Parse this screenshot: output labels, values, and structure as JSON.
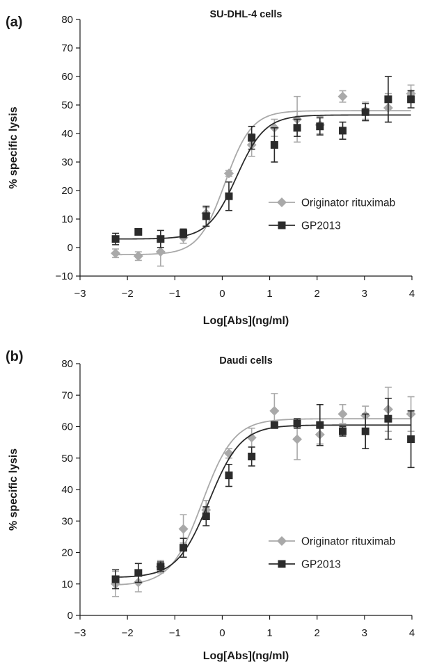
{
  "chart_data": [
    {
      "type": "scatter",
      "panel_label": "(a)",
      "title": "SU-DHL-4 cells",
      "xlabel": "Log[Abs](ng/ml)",
      "ylabel": "% specific lysis",
      "xlim": [
        -3,
        4
      ],
      "ylim": [
        -10,
        80
      ],
      "xticks": [
        -3,
        -2,
        -1,
        0,
        1,
        2,
        3,
        4
      ],
      "yticks": [
        -10,
        0,
        10,
        20,
        30,
        40,
        50,
        60,
        70,
        80
      ],
      "xtick_labels": [
        "−3",
        "−2",
        "−1",
        "0",
        "1",
        "2",
        "3",
        "4"
      ],
      "ytick_labels": [
        "−10",
        "0",
        "10",
        "20",
        "30",
        "40",
        "50",
        "60",
        "70",
        "80"
      ],
      "grid": false,
      "legend_position": "center-right",
      "series": [
        {
          "name": "Originator rituximab",
          "color": "#a9a9a9",
          "marker": "diamond",
          "x": [
            -2.25,
            -1.77,
            -1.3,
            -0.82,
            -0.34,
            0.14,
            0.62,
            1.1,
            1.58,
            2.06,
            2.54,
            3.02,
            3.5,
            3.98
          ],
          "y": [
            -2,
            -3,
            -1.5,
            3.5,
            12,
            26,
            36,
            42,
            45,
            43,
            53,
            48,
            49,
            54
          ],
          "err": [
            1.5,
            1.5,
            5,
            2,
            2,
            1,
            4,
            3,
            8,
            3,
            2,
            3,
            5,
            3
          ],
          "fit": {
            "bottom": -2.5,
            "top": 48,
            "ec50": 0.06,
            "hill": 1.55
          }
        },
        {
          "name": "GP2013",
          "color": "#2b2b2b",
          "marker": "square",
          "x": [
            -2.25,
            -1.77,
            -1.3,
            -0.82,
            -0.34,
            0.14,
            0.62,
            1.1,
            1.58,
            2.06,
            2.54,
            3.02,
            3.5,
            3.98
          ],
          "y": [
            3,
            5.5,
            3,
            5,
            11,
            18,
            38.5,
            36,
            42,
            42.5,
            41,
            47.5,
            52,
            52
          ],
          "err": [
            2,
            0,
            3,
            1.5,
            3.5,
            5,
            4,
            6,
            3,
            3,
            3,
            3,
            8,
            3
          ],
          "fit": {
            "bottom": 3,
            "top": 46.5,
            "ec50": 0.3,
            "hill": 1.45
          }
        }
      ]
    },
    {
      "type": "scatter",
      "panel_label": "(b)",
      "title": "Daudi cells",
      "xlabel": "Log[Abs](ng/ml)",
      "ylabel": "% specific lysis",
      "xlim": [
        -3,
        4
      ],
      "ylim": [
        0,
        80
      ],
      "xticks": [
        -3,
        -2,
        -1,
        0,
        1,
        2,
        3,
        4
      ],
      "yticks": [
        0,
        10,
        20,
        30,
        40,
        50,
        60,
        70,
        80
      ],
      "xtick_labels": [
        "−3",
        "−2",
        "−1",
        "0",
        "1",
        "2",
        "3",
        "4"
      ],
      "ytick_labels": [
        "0",
        "10",
        "20",
        "30",
        "40",
        "50",
        "60",
        "70",
        "80"
      ],
      "grid": false,
      "legend_position": "center-right",
      "series": [
        {
          "name": "Originator rituximab",
          "color": "#a9a9a9",
          "marker": "diamond",
          "x": [
            -2.25,
            -1.77,
            -1.3,
            -0.82,
            -0.34,
            0.14,
            0.62,
            1.1,
            1.58,
            2.06,
            2.54,
            3.02,
            3.5,
            3.98
          ],
          "y": [
            10,
            10.5,
            15.5,
            27.5,
            33.5,
            51.5,
            56.5,
            65,
            56,
            57.5,
            64,
            63.5,
            65.5,
            64
          ],
          "err": [
            4,
            3,
            2,
            4.5,
            3,
            1.5,
            3,
            5.5,
            6.5,
            3,
            3,
            3,
            7,
            5.5
          ],
          "fit": {
            "bottom": 9.5,
            "top": 62.5,
            "ec50": -0.42,
            "hill": 1.3
          }
        },
        {
          "name": "GP2013",
          "color": "#2b2b2b",
          "marker": "square",
          "x": [
            -2.25,
            -1.77,
            -1.3,
            -0.82,
            -0.34,
            0.14,
            0.62,
            1.1,
            1.58,
            2.06,
            2.54,
            3.02,
            3.5,
            3.98
          ],
          "y": [
            11.5,
            13.5,
            15.5,
            21.5,
            31.5,
            44.5,
            50.5,
            60.5,
            61,
            60.5,
            58.5,
            58.5,
            62.5,
            56
          ],
          "err": [
            3,
            3,
            1.5,
            3,
            3,
            3.5,
            3,
            1,
            1.5,
            6.5,
            1.5,
            5.5,
            6.5,
            9
          ],
          "fit": {
            "bottom": 12,
            "top": 60.5,
            "ec50": -0.28,
            "hill": 1.3
          }
        }
      ]
    }
  ]
}
